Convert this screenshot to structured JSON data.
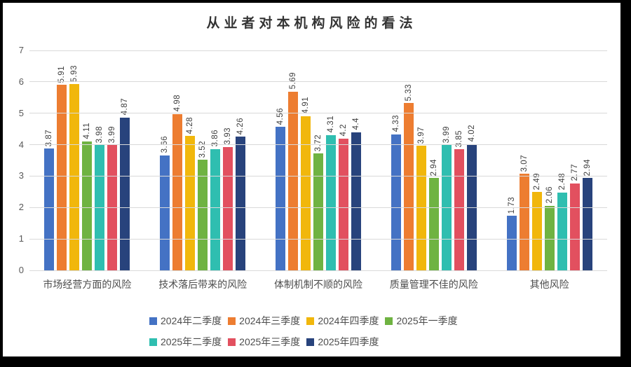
{
  "chart_data": {
    "type": "bar",
    "title": "从业者对本机构风险的看法",
    "categories": [
      "市场经营方面的风险",
      "技术落后带来的风险",
      "体制机制不顺的风险",
      "质量管理不佳的风险",
      "其他风险"
    ],
    "series": [
      {
        "name": "2024年二季度",
        "color": "#4472C4",
        "values": [
          3.87,
          3.66,
          4.56,
          4.33,
          1.73
        ]
      },
      {
        "name": "2024年三季度",
        "color": "#ED7D31",
        "values": [
          5.91,
          4.98,
          5.69,
          5.33,
          3.07
        ]
      },
      {
        "name": "2024年四季度",
        "color": "#F1B70C",
        "values": [
          5.93,
          4.28,
          4.91,
          3.97,
          2.49
        ]
      },
      {
        "name": "2025年一季度",
        "color": "#6FB342",
        "values": [
          4.11,
          3.52,
          3.72,
          2.94,
          2.06
        ]
      },
      {
        "name": "2025年二季度",
        "color": "#2FBEB0",
        "values": [
          3.98,
          3.86,
          4.31,
          3.99,
          2.48
        ]
      },
      {
        "name": "2025年三季度",
        "color": "#E2505F",
        "values": [
          3.99,
          3.93,
          4.2,
          3.85,
          2.77
        ]
      },
      {
        "name": "2025年四季度",
        "color": "#28437C",
        "values": [
          4.87,
          4.26,
          4.4,
          4.02,
          2.94
        ]
      }
    ],
    "ylim": [
      0,
      7
    ],
    "yticks": [
      0,
      1,
      2,
      3,
      4,
      5,
      6,
      7
    ],
    "grid": true,
    "legend_position": "bottom",
    "legend_rows": [
      4,
      3
    ],
    "data_labels": true,
    "gridline_color": "#D9D9D9",
    "axis_text_color": "#595959",
    "label_text_color": "#404040"
  }
}
